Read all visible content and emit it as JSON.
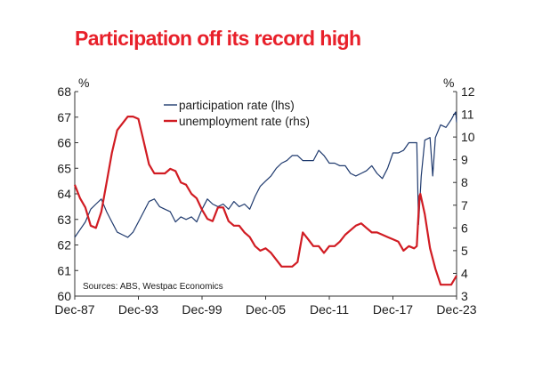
{
  "title": "Participation off its record high",
  "chart_data": {
    "type": "line",
    "title": "Participation off its record high",
    "left_axis": {
      "unit": "%",
      "ylim": [
        60,
        68
      ],
      "ticks": [
        "68",
        "67",
        "66",
        "65",
        "64",
        "63",
        "62",
        "61",
        "60"
      ]
    },
    "right_axis": {
      "unit": "%",
      "ylim": [
        3,
        12
      ],
      "ticks": [
        "12",
        "11",
        "10",
        "9",
        "8",
        "7",
        "6",
        "5",
        "4",
        "3"
      ]
    },
    "x_axis": {
      "xlim": [
        "1987-12",
        "2023-12"
      ],
      "ticks": [
        "Dec-87",
        "Dec-93",
        "Dec-99",
        "Dec-05",
        "Dec-11",
        "Dec-17",
        "Dec-23"
      ]
    },
    "grid": false,
    "legend_position": "top-center",
    "source": "Sources: ABS, Westpac Economics",
    "series": [
      {
        "name": "participation rate (lhs)",
        "axis": "left",
        "color": "#1f3a6e",
        "points": [
          [
            "1987-12",
            62.3
          ],
          [
            "1988-06",
            62.6
          ],
          [
            "1988-12",
            62.9
          ],
          [
            "1989-06",
            63.4
          ],
          [
            "1989-12",
            63.6
          ],
          [
            "1990-06",
            63.8
          ],
          [
            "1990-12",
            63.3
          ],
          [
            "1991-06",
            62.9
          ],
          [
            "1991-12",
            62.5
          ],
          [
            "1992-06",
            62.4
          ],
          [
            "1992-12",
            62.3
          ],
          [
            "1993-06",
            62.5
          ],
          [
            "1993-12",
            62.9
          ],
          [
            "1994-06",
            63.3
          ],
          [
            "1994-12",
            63.7
          ],
          [
            "1995-06",
            63.8
          ],
          [
            "1995-12",
            63.5
          ],
          [
            "1996-06",
            63.4
          ],
          [
            "1996-12",
            63.3
          ],
          [
            "1997-06",
            62.9
          ],
          [
            "1997-12",
            63.1
          ],
          [
            "1998-06",
            63.0
          ],
          [
            "1998-12",
            63.1
          ],
          [
            "1999-06",
            62.9
          ],
          [
            "1999-12",
            63.4
          ],
          [
            "2000-06",
            63.8
          ],
          [
            "2000-12",
            63.6
          ],
          [
            "2001-06",
            63.5
          ],
          [
            "2001-12",
            63.6
          ],
          [
            "2002-06",
            63.4
          ],
          [
            "2002-12",
            63.7
          ],
          [
            "2003-06",
            63.5
          ],
          [
            "2003-12",
            63.6
          ],
          [
            "2004-06",
            63.4
          ],
          [
            "2004-12",
            63.9
          ],
          [
            "2005-06",
            64.3
          ],
          [
            "2005-12",
            64.5
          ],
          [
            "2006-06",
            64.7
          ],
          [
            "2006-12",
            65.0
          ],
          [
            "2007-06",
            65.2
          ],
          [
            "2007-12",
            65.3
          ],
          [
            "2008-06",
            65.5
          ],
          [
            "2008-12",
            65.5
          ],
          [
            "2009-06",
            65.3
          ],
          [
            "2009-12",
            65.3
          ],
          [
            "2010-06",
            65.3
          ],
          [
            "2010-12",
            65.7
          ],
          [
            "2011-06",
            65.5
          ],
          [
            "2011-12",
            65.2
          ],
          [
            "2012-06",
            65.2
          ],
          [
            "2012-12",
            65.1
          ],
          [
            "2013-06",
            65.1
          ],
          [
            "2013-12",
            64.8
          ],
          [
            "2014-06",
            64.7
          ],
          [
            "2014-12",
            64.8
          ],
          [
            "2015-06",
            64.9
          ],
          [
            "2015-12",
            65.1
          ],
          [
            "2016-06",
            64.8
          ],
          [
            "2016-12",
            64.6
          ],
          [
            "2017-06",
            65.0
          ],
          [
            "2017-12",
            65.6
          ],
          [
            "2018-06",
            65.6
          ],
          [
            "2018-12",
            65.7
          ],
          [
            "2019-06",
            66.0
          ],
          [
            "2019-12",
            66.0
          ],
          [
            "2020-03",
            66.0
          ],
          [
            "2020-05",
            62.8
          ],
          [
            "2020-08",
            64.7
          ],
          [
            "2020-12",
            66.1
          ],
          [
            "2021-06",
            66.2
          ],
          [
            "2021-09",
            64.7
          ],
          [
            "2021-12",
            66.2
          ],
          [
            "2022-06",
            66.7
          ],
          [
            "2022-12",
            66.6
          ],
          [
            "2023-06",
            66.9
          ],
          [
            "2023-09",
            67.1
          ],
          [
            "2023-11",
            67.2
          ],
          [
            "2023-12",
            66.8
          ]
        ]
      },
      {
        "name": "unemployment rate (rhs)",
        "axis": "right",
        "color": "#d11c23",
        "points": [
          [
            "1987-12",
            7.9
          ],
          [
            "1988-06",
            7.3
          ],
          [
            "1988-12",
            6.9
          ],
          [
            "1989-06",
            6.1
          ],
          [
            "1989-12",
            6.0
          ],
          [
            "1990-06",
            6.7
          ],
          [
            "1990-12",
            8.0
          ],
          [
            "1991-06",
            9.3
          ],
          [
            "1991-12",
            10.3
          ],
          [
            "1992-06",
            10.6
          ],
          [
            "1992-12",
            10.9
          ],
          [
            "1993-06",
            10.9
          ],
          [
            "1993-12",
            10.8
          ],
          [
            "1994-06",
            9.8
          ],
          [
            "1994-12",
            8.8
          ],
          [
            "1995-06",
            8.4
          ],
          [
            "1995-12",
            8.4
          ],
          [
            "1996-06",
            8.4
          ],
          [
            "1996-12",
            8.6
          ],
          [
            "1997-06",
            8.5
          ],
          [
            "1997-12",
            8.0
          ],
          [
            "1998-06",
            7.9
          ],
          [
            "1998-12",
            7.5
          ],
          [
            "1999-06",
            7.3
          ],
          [
            "1999-12",
            6.8
          ],
          [
            "2000-06",
            6.4
          ],
          [
            "2000-12",
            6.3
          ],
          [
            "2001-06",
            6.9
          ],
          [
            "2001-12",
            6.9
          ],
          [
            "2002-06",
            6.3
          ],
          [
            "2002-12",
            6.1
          ],
          [
            "2003-06",
            6.1
          ],
          [
            "2003-12",
            5.8
          ],
          [
            "2004-06",
            5.6
          ],
          [
            "2004-12",
            5.2
          ],
          [
            "2005-06",
            5.0
          ],
          [
            "2005-12",
            5.1
          ],
          [
            "2006-06",
            4.9
          ],
          [
            "2006-12",
            4.6
          ],
          [
            "2007-06",
            4.3
          ],
          [
            "2007-12",
            4.3
          ],
          [
            "2008-06",
            4.3
          ],
          [
            "2008-12",
            4.5
          ],
          [
            "2009-06",
            5.8
          ],
          [
            "2009-12",
            5.5
          ],
          [
            "2010-06",
            5.2
          ],
          [
            "2010-12",
            5.2
          ],
          [
            "2011-06",
            4.9
          ],
          [
            "2011-12",
            5.2
          ],
          [
            "2012-06",
            5.2
          ],
          [
            "2012-12",
            5.4
          ],
          [
            "2013-06",
            5.7
          ],
          [
            "2013-12",
            5.9
          ],
          [
            "2014-06",
            6.1
          ],
          [
            "2014-12",
            6.2
          ],
          [
            "2015-06",
            6.0
          ],
          [
            "2015-12",
            5.8
          ],
          [
            "2016-06",
            5.8
          ],
          [
            "2016-12",
            5.7
          ],
          [
            "2017-06",
            5.6
          ],
          [
            "2017-12",
            5.5
          ],
          [
            "2018-06",
            5.4
          ],
          [
            "2018-12",
            5.0
          ],
          [
            "2019-06",
            5.2
          ],
          [
            "2019-12",
            5.1
          ],
          [
            "2020-03",
            5.2
          ],
          [
            "2020-06",
            7.4
          ],
          [
            "2020-07",
            7.5
          ],
          [
            "2020-12",
            6.6
          ],
          [
            "2021-06",
            5.1
          ],
          [
            "2021-12",
            4.2
          ],
          [
            "2022-06",
            3.5
          ],
          [
            "2022-12",
            3.5
          ],
          [
            "2023-06",
            3.5
          ],
          [
            "2023-12",
            3.9
          ]
        ]
      }
    ]
  }
}
